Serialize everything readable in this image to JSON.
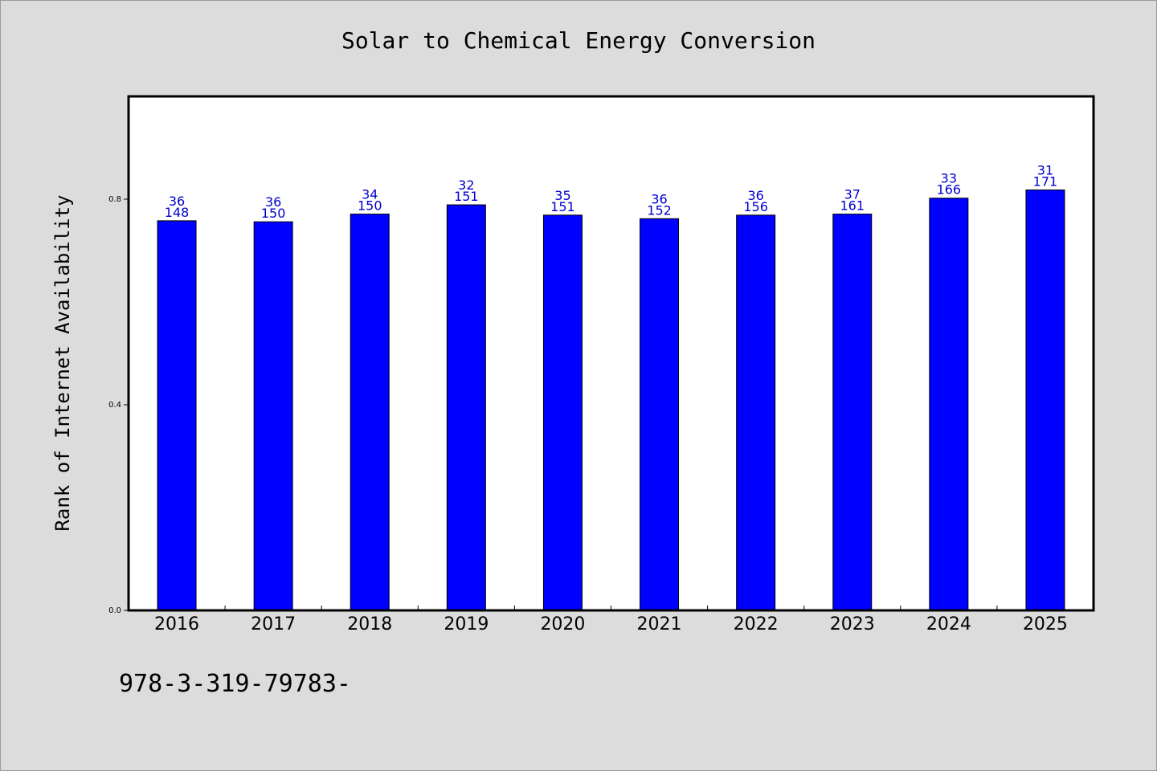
{
  "title": "Solar to Chemical Energy Conversion",
  "footer_text": "978-3-319-79783-",
  "colors": {
    "background": "#dcdcdc",
    "plot_background": "#ffffff",
    "bar": "#0000ff",
    "bar_label": "#0000cc",
    "axis": "#000000"
  },
  "chart_data": {
    "type": "bar",
    "title": "Solar to Chemical Energy Conversion",
    "xlabel": "",
    "ylabel": "Rank of Internet Availability",
    "ylim": [
      0,
      1.0
    ],
    "yticks": [
      0.0,
      0.4,
      0.8
    ],
    "ytick_labels": [
      "0.0",
      "0.4",
      "0.8"
    ],
    "grid": false,
    "categories": [
      "2016",
      "2017",
      "2018",
      "2019",
      "2020",
      "2021",
      "2022",
      "2023",
      "2024",
      "2025"
    ],
    "values": [
      0.758,
      0.756,
      0.771,
      0.789,
      0.769,
      0.762,
      0.769,
      0.771,
      0.802,
      0.818
    ],
    "labels_top": [
      "36",
      "36",
      "34",
      "32",
      "35",
      "36",
      "36",
      "37",
      "33",
      "31"
    ],
    "labels_bottom": [
      "148",
      "150",
      "150",
      "151",
      "151",
      "152",
      "156",
      "161",
      "166",
      "171"
    ]
  }
}
